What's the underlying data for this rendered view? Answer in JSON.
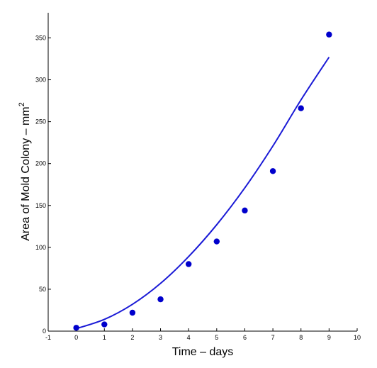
{
  "chart_data": {
    "type": "scatter",
    "xlabel": "Time – days",
    "ylabel_main": "Area of Mold Colony – mm",
    "ylabel_sup": "2",
    "xlim": [
      -1,
      10
    ],
    "ylim": [
      0,
      380
    ],
    "xticks": [
      -1,
      0,
      1,
      2,
      3,
      4,
      5,
      6,
      7,
      8,
      9,
      10
    ],
    "yticks": [
      0,
      50,
      100,
      150,
      200,
      250,
      300,
      350
    ],
    "grid": false,
    "colors": {
      "points": "#0000cc",
      "fit": "#1a1ad6",
      "axes": "#000000"
    },
    "series": [
      {
        "kind": "points",
        "x": [
          0,
          1,
          2,
          3,
          4,
          5,
          6,
          7,
          8,
          9
        ],
        "y": [
          4,
          8,
          22,
          38,
          80,
          107,
          144,
          191,
          266,
          354
        ]
      },
      {
        "kind": "fit-curve",
        "x": [
          0,
          1,
          2,
          3,
          4,
          5,
          6,
          7,
          8,
          9
        ],
        "y": [
          3,
          14,
          32,
          57,
          89,
          127,
          171,
          221,
          276,
          327
        ]
      }
    ]
  }
}
